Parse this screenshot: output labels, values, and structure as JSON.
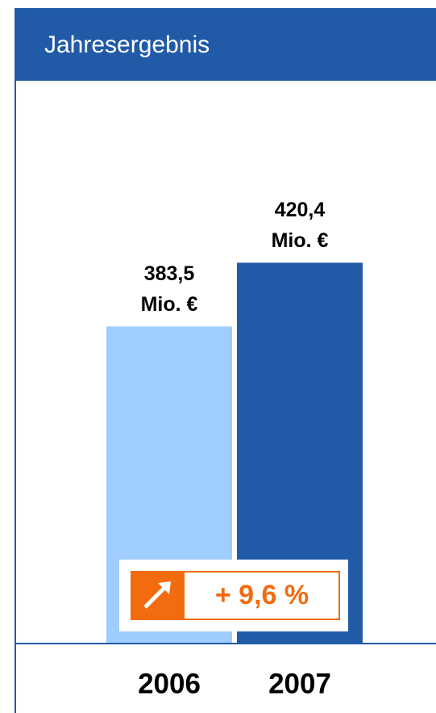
{
  "chart_data": {
    "type": "bar",
    "title": "Jahresergebnis",
    "categories": [
      "2006",
      "2007"
    ],
    "values": [
      383.5,
      420.4
    ],
    "value_labels": [
      "383,5\nMio. €",
      "420,4\nMio. €"
    ],
    "colors": [
      "#9fcdfd",
      "#215ba7"
    ],
    "ylim": [
      200,
      500
    ],
    "annotation": "+ 9,6 %",
    "annotation_color": "#f26b0f"
  }
}
